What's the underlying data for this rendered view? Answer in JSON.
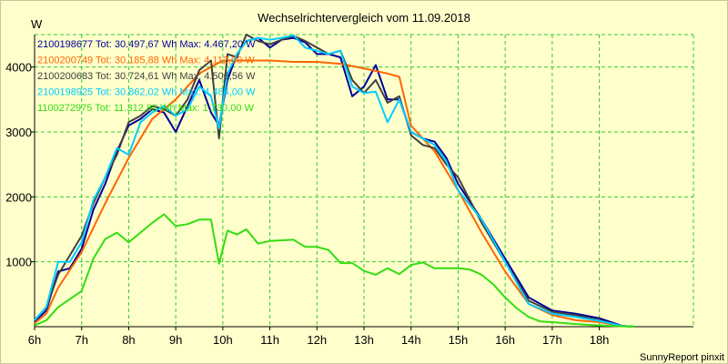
{
  "chart_data": {
    "type": "line",
    "title": "Wechselrichtervergleich vom 11.09.2018",
    "ylabel": "W",
    "xlabel": "",
    "credit": "SunnyReport pinxit",
    "xlim": [
      6,
      20
    ],
    "ylim": [
      0,
      4500
    ],
    "x_ticks": [
      6,
      7,
      8,
      9,
      10,
      11,
      12,
      13,
      14,
      15,
      16,
      17,
      18
    ],
    "x_tick_labels": [
      "6h",
      "7h",
      "8h",
      "9h",
      "10h",
      "11h",
      "12h",
      "13h",
      "14h",
      "15h",
      "16h",
      "17h",
      "18h"
    ],
    "y_ticks": [
      1000,
      2000,
      3000,
      4000
    ],
    "y_tick_labels": [
      "1000",
      "2000",
      "3000",
      "4000"
    ],
    "grid": true,
    "legend_position": "top-left",
    "colors": {
      "background": "#ffffcc",
      "grid": "#33cc33",
      "axis": "#000000"
    },
    "series": [
      {
        "name": "2100198677",
        "legend": "2100198677 Tot: 30.497,67 Wh Max: 4.467,20 W",
        "color": "#000099",
        "x": [
          6.0,
          6.25,
          6.5,
          6.75,
          7.0,
          7.25,
          7.5,
          7.75,
          8.0,
          8.25,
          8.5,
          8.75,
          9.0,
          9.25,
          9.5,
          9.75,
          9.92,
          10.1,
          10.3,
          10.5,
          10.75,
          11.0,
          11.25,
          11.5,
          11.75,
          12.0,
          12.25,
          12.5,
          12.75,
          13.0,
          13.25,
          13.5,
          13.75,
          14.0,
          14.25,
          14.5,
          14.75,
          15.0,
          15.5,
          16.0,
          16.5,
          17.0,
          17.5,
          18.0,
          18.5,
          18.75
        ],
        "values": [
          80,
          250,
          850,
          900,
          1200,
          1800,
          2200,
          2700,
          3100,
          3200,
          3350,
          3300,
          3000,
          3400,
          3800,
          3300,
          3100,
          3800,
          4200,
          4400,
          4450,
          4300,
          4420,
          4450,
          4380,
          4200,
          4200,
          4150,
          3550,
          3700,
          4030,
          3500,
          3500,
          3000,
          2900,
          2850,
          2600,
          2200,
          1650,
          1050,
          450,
          250,
          200,
          130,
          10,
          0
        ]
      },
      {
        "name": "2100200749",
        "legend": "2100200749 Tot: 30.185,88 Wh Max: 4.112,00 W",
        "color": "#ff6600",
        "x": [
          6.0,
          6.25,
          6.5,
          7.0,
          7.5,
          8.0,
          8.5,
          9.0,
          9.5,
          10.0,
          10.5,
          11.0,
          11.5,
          12.0,
          12.5,
          13.0,
          13.5,
          13.75,
          14.0,
          14.5,
          15.0,
          15.5,
          16.0,
          16.5,
          17.0,
          17.5,
          18.0,
          18.5,
          18.75
        ],
        "values": [
          50,
          200,
          600,
          1150,
          1900,
          2600,
          3200,
          3500,
          3900,
          4100,
          4100,
          4100,
          4080,
          4080,
          4050,
          3980,
          3900,
          3850,
          3100,
          2700,
          2100,
          1450,
          850,
          350,
          180,
          100,
          70,
          10,
          0
        ]
      },
      {
        "name": "2100200683",
        "legend": "2100200683 Tot: 30.724,61 Wh Max: 4.506,56 W",
        "color": "#404040",
        "x": [
          6.0,
          6.25,
          6.5,
          6.75,
          7.0,
          7.25,
          7.5,
          7.75,
          8.0,
          8.25,
          8.5,
          8.75,
          9.0,
          9.25,
          9.5,
          9.75,
          9.92,
          10.1,
          10.3,
          10.5,
          10.75,
          11.0,
          11.25,
          11.5,
          11.75,
          12.0,
          12.25,
          12.5,
          12.75,
          13.0,
          13.25,
          13.5,
          13.75,
          14.0,
          14.25,
          14.5,
          14.75,
          15.0,
          15.5,
          16.0,
          16.5,
          17.0,
          17.5,
          18.0,
          18.5,
          18.75
        ],
        "values": [
          100,
          300,
          800,
          1100,
          1400,
          1900,
          2300,
          2650,
          3150,
          3250,
          3400,
          3350,
          3250,
          3500,
          3950,
          4100,
          2900,
          4200,
          4150,
          4500,
          4400,
          4350,
          4420,
          4480,
          4400,
          4300,
          4200,
          4250,
          3800,
          3600,
          3800,
          3450,
          3550,
          2950,
          2800,
          2750,
          2500,
          2300,
          1600,
          1000,
          400,
          230,
          180,
          100,
          10,
          0
        ]
      },
      {
        "name": "2100198925",
        "legend": "2100198925 Tot: 30.862,02 Wh Max: 4.484,00 W",
        "color": "#00ccff",
        "x": [
          6.0,
          6.25,
          6.5,
          6.75,
          7.0,
          7.25,
          7.5,
          7.75,
          8.0,
          8.25,
          8.5,
          8.75,
          9.0,
          9.25,
          9.5,
          9.75,
          9.92,
          10.1,
          10.3,
          10.5,
          10.75,
          11.0,
          11.25,
          11.5,
          11.75,
          12.0,
          12.25,
          12.5,
          12.75,
          13.0,
          13.25,
          13.5,
          13.75,
          14.0,
          14.25,
          14.5,
          14.75,
          15.0,
          15.5,
          16.0,
          16.5,
          17.0,
          17.5,
          18.0,
          18.5,
          18.75
        ],
        "values": [
          100,
          300,
          1000,
          1000,
          1300,
          1950,
          2300,
          2750,
          2650,
          3150,
          3300,
          3400,
          3250,
          3350,
          3700,
          3550,
          3050,
          3900,
          4200,
          4400,
          4450,
          4420,
          4450,
          4490,
          4300,
          4250,
          4200,
          4250,
          3700,
          3600,
          3620,
          3150,
          3500,
          3000,
          2900,
          2800,
          2550,
          2100,
          1650,
          1000,
          350,
          200,
          150,
          90,
          10,
          0
        ]
      },
      {
        "name": "1100272975",
        "legend": "1100272975 Tot: 11.312,88 Wh Max: 1.730,00 W",
        "color": "#33dd11",
        "x": [
          6.0,
          6.25,
          6.5,
          7.0,
          7.25,
          7.5,
          7.75,
          8.0,
          8.25,
          8.5,
          8.75,
          9.0,
          9.25,
          9.5,
          9.75,
          9.92,
          10.1,
          10.3,
          10.5,
          10.75,
          11.0,
          11.25,
          11.5,
          11.75,
          12.0,
          12.25,
          12.5,
          12.75,
          13.0,
          13.25,
          13.5,
          13.75,
          14.0,
          14.25,
          14.5,
          14.75,
          15.0,
          15.25,
          15.5,
          15.75,
          16.0,
          16.25,
          16.5,
          16.75,
          17.0,
          17.5,
          18.0,
          18.5,
          18.75
        ],
        "values": [
          20,
          100,
          300,
          550,
          1050,
          1350,
          1450,
          1300,
          1450,
          1600,
          1730,
          1550,
          1580,
          1650,
          1650,
          970,
          1480,
          1420,
          1500,
          1280,
          1320,
          1330,
          1340,
          1230,
          1230,
          1180,
          980,
          980,
          860,
          800,
          900,
          810,
          950,
          990,
          900,
          900,
          900,
          880,
          800,
          650,
          450,
          280,
          150,
          80,
          70,
          40,
          20,
          5,
          0
        ]
      }
    ]
  }
}
